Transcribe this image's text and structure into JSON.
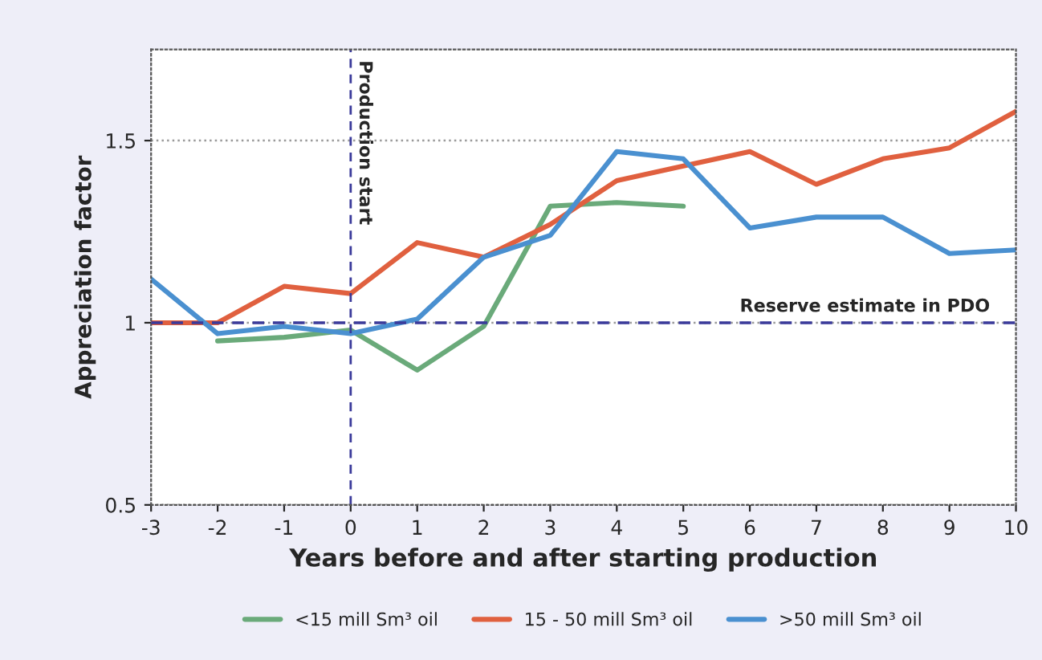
{
  "chart_data": {
    "type": "line",
    "xlabel": "Years before and after starting production",
    "ylabel": "Appreciation factor",
    "x": [
      -3,
      -2,
      -1,
      0,
      1,
      2,
      3,
      4,
      5,
      6,
      7,
      8,
      9,
      10
    ],
    "series": [
      {
        "name": "<15 mill Sm³ oil",
        "color": "#6aaa7a",
        "values": [
          null,
          0.95,
          0.96,
          0.98,
          0.87,
          0.99,
          1.32,
          1.33,
          1.32,
          null,
          null,
          null,
          null,
          null
        ]
      },
      {
        "name": "15 - 50 mill Sm³ oil",
        "color": "#e0603f",
        "values": [
          1.0,
          1.0,
          1.1,
          1.08,
          1.22,
          1.18,
          1.27,
          1.39,
          1.43,
          1.47,
          1.38,
          1.45,
          1.48,
          1.58
        ]
      },
      {
        "name": ">50 mill Sm³ oil",
        "color": "#4a90d0",
        "values": [
          1.12,
          0.97,
          0.99,
          0.97,
          1.01,
          1.18,
          1.24,
          1.47,
          1.45,
          1.26,
          1.29,
          1.29,
          1.19,
          1.2
        ]
      }
    ],
    "xlim": [
      -3,
      10
    ],
    "xticks": [
      -3,
      -2,
      -1,
      0,
      1,
      2,
      3,
      4,
      5,
      6,
      7,
      8,
      9,
      10
    ],
    "ylim": [
      0.5,
      1.75
    ],
    "yticks": [
      0.5,
      1,
      1.5
    ],
    "ref_lines": [
      {
        "axis": "x",
        "value": 0,
        "label": "Production start",
        "color": "#3a3a9a",
        "line_style": "dashed"
      },
      {
        "axis": "y",
        "value": 1,
        "label": "Reserve estimate in PDO",
        "color": "#3a3a9a",
        "line_style": "dashed"
      }
    ],
    "grid": "y",
    "legend": "bottom",
    "marker": "none",
    "line_style": "solid"
  }
}
